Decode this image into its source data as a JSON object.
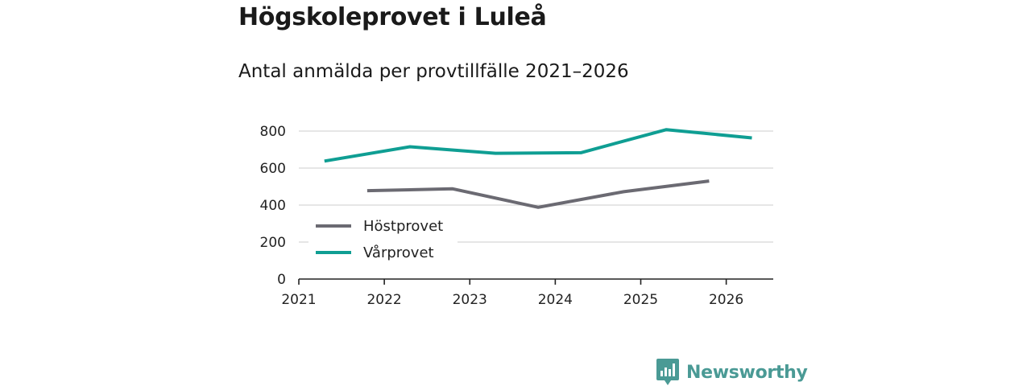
{
  "header": {
    "title": "Högskoleprovet i Luleå",
    "subtitle": "Antal anmälda per provtillfälle 2021–2026"
  },
  "chart_data": {
    "type": "line",
    "title": "Högskoleprovet i Luleå",
    "subtitle": "Antal anmälda per provtillfälle 2021–2026",
    "xlabel": "",
    "ylabel": "",
    "xlim": [
      2021,
      2026.55
    ],
    "ylim": [
      0,
      800
    ],
    "yticks": [
      0,
      200,
      400,
      600,
      800
    ],
    "yticklabels": [
      "0",
      "200",
      "400",
      "600",
      "800"
    ],
    "xticks": [
      2021,
      2022,
      2023,
      2024,
      2025,
      2026
    ],
    "xticklabels": [
      "2021",
      "2022",
      "2023",
      "2024",
      "2025",
      "2026"
    ],
    "grid": true,
    "legend_position": "lower-left",
    "series": [
      {
        "name": "Höstprovet",
        "color": "#6b6a72",
        "x": [
          2021.8,
          2022.8,
          2023.8,
          2024.8,
          2025.8
        ],
        "values": [
          478,
          488,
          388,
          472,
          530
        ]
      },
      {
        "name": "Vårprovet",
        "color": "#0f9e93",
        "x": [
          2021.3,
          2022.3,
          2023.3,
          2024.3,
          2025.3,
          2026.3
        ],
        "values": [
          638,
          715,
          680,
          683,
          808,
          763
        ]
      }
    ]
  },
  "branding": {
    "icon": "bar-chart-speech-bubble-icon",
    "name": "Newsworthy",
    "color": "#4a9a95"
  }
}
